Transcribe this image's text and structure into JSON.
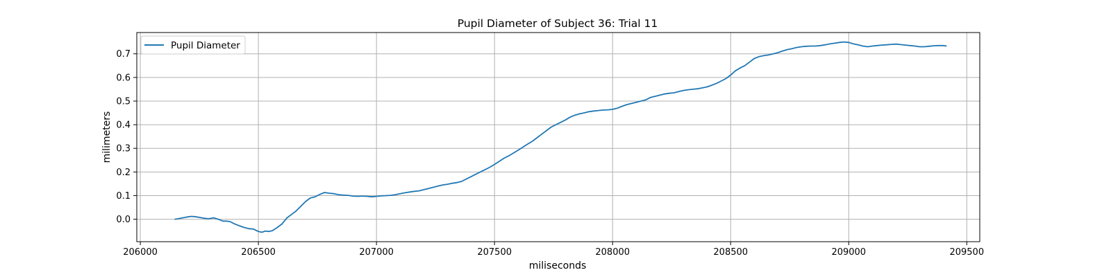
{
  "chart_data": {
    "type": "line",
    "title": "Pupil Diameter of Subject 36: Trial 11",
    "xlabel": "miliseconds",
    "ylabel": "milimeters",
    "xlim": [
      205985,
      209555
    ],
    "ylim": [
      -0.095,
      0.79
    ],
    "xticks": [
      206000,
      206500,
      207000,
      207500,
      208000,
      208500,
      209000,
      209500
    ],
    "yticks": [
      0.0,
      0.1,
      0.2,
      0.3,
      0.4,
      0.5,
      0.6,
      0.7
    ],
    "ytick_labels": [
      "0.0",
      "0.1",
      "0.2",
      "0.3",
      "0.4",
      "0.5",
      "0.6",
      "0.7"
    ],
    "grid": true,
    "legend_position": "top-left",
    "series": [
      {
        "name": "Pupil Diameter",
        "color": "#1f77b4",
        "x": [
          206145,
          206160,
          206180,
          206200,
          206215,
          206230,
          206250,
          206270,
          206290,
          206310,
          206330,
          206350,
          206365,
          206380,
          206400,
          206420,
          206440,
          206460,
          206480,
          206500,
          206515,
          206530,
          206545,
          206560,
          206580,
          206600,
          206620,
          206640,
          206660,
          206680,
          206700,
          206720,
          206740,
          206760,
          206780,
          206800,
          206820,
          206840,
          206860,
          206880,
          206900,
          206920,
          206940,
          206960,
          206980,
          207000,
          207020,
          207040,
          207060,
          207080,
          207100,
          207120,
          207140,
          207160,
          207180,
          207200,
          207220,
          207240,
          207260,
          207280,
          207300,
          207320,
          207340,
          207360,
          207380,
          207400,
          207420,
          207440,
          207460,
          207480,
          207500,
          207520,
          207540,
          207560,
          207580,
          207600,
          207620,
          207640,
          207660,
          207680,
          207700,
          207720,
          207740,
          207760,
          207780,
          207800,
          207820,
          207840,
          207860,
          207880,
          207900,
          207920,
          207940,
          207960,
          207980,
          208000,
          208020,
          208040,
          208060,
          208080,
          208100,
          208120,
          208140,
          208160,
          208180,
          208200,
          208220,
          208240,
          208260,
          208280,
          208300,
          208320,
          208340,
          208360,
          208380,
          208400,
          208420,
          208440,
          208460,
          208480,
          208500,
          208520,
          208540,
          208560,
          208580,
          208600,
          208620,
          208640,
          208660,
          208680,
          208700,
          208720,
          208740,
          208760,
          208780,
          208800,
          208820,
          208840,
          208860,
          208880,
          208900,
          208920,
          208940,
          208960,
          208980,
          209000,
          209020,
          209040,
          209060,
          209080,
          209100,
          209120,
          209140,
          209160,
          209180,
          209200,
          209220,
          209240,
          209260,
          209280,
          209300,
          209320,
          209340,
          209360,
          209380,
          209400,
          209415
        ],
        "y": [
          0.0,
          0.002,
          0.006,
          0.01,
          0.012,
          0.011,
          0.008,
          0.004,
          0.002,
          0.006,
          0.0,
          -0.008,
          -0.008,
          -0.01,
          -0.02,
          -0.028,
          -0.035,
          -0.04,
          -0.042,
          -0.052,
          -0.055,
          -0.05,
          -0.052,
          -0.048,
          -0.035,
          -0.02,
          0.005,
          0.02,
          0.035,
          0.055,
          0.075,
          0.09,
          0.095,
          0.105,
          0.113,
          0.11,
          0.108,
          0.104,
          0.102,
          0.101,
          0.098,
          0.097,
          0.098,
          0.097,
          0.095,
          0.097,
          0.099,
          0.1,
          0.101,
          0.104,
          0.108,
          0.112,
          0.115,
          0.118,
          0.12,
          0.125,
          0.13,
          0.135,
          0.14,
          0.145,
          0.148,
          0.152,
          0.155,
          0.16,
          0.17,
          0.18,
          0.19,
          0.2,
          0.21,
          0.22,
          0.232,
          0.245,
          0.258,
          0.268,
          0.28,
          0.292,
          0.305,
          0.318,
          0.33,
          0.345,
          0.36,
          0.375,
          0.39,
          0.4,
          0.41,
          0.42,
          0.432,
          0.44,
          0.446,
          0.45,
          0.455,
          0.458,
          0.46,
          0.462,
          0.463,
          0.465,
          0.47,
          0.478,
          0.485,
          0.49,
          0.495,
          0.5,
          0.505,
          0.515,
          0.52,
          0.525,
          0.53,
          0.533,
          0.535,
          0.54,
          0.545,
          0.548,
          0.55,
          0.552,
          0.556,
          0.56,
          0.567,
          0.575,
          0.585,
          0.595,
          0.61,
          0.628,
          0.64,
          0.65,
          0.665,
          0.68,
          0.688,
          0.692,
          0.695,
          0.7,
          0.705,
          0.712,
          0.718,
          0.722,
          0.727,
          0.73,
          0.732,
          0.733,
          0.733,
          0.735,
          0.738,
          0.742,
          0.745,
          0.748,
          0.75,
          0.748,
          0.742,
          0.738,
          0.733,
          0.73,
          0.733,
          0.735,
          0.737,
          0.738,
          0.74,
          0.741,
          0.739,
          0.737,
          0.735,
          0.733,
          0.73,
          0.73,
          0.732,
          0.734,
          0.735,
          0.735,
          0.733
        ]
      }
    ]
  }
}
